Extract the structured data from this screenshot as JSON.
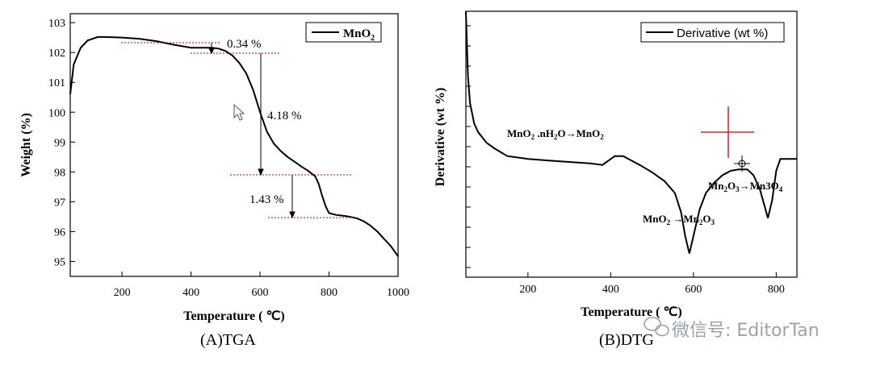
{
  "chart_data": [
    {
      "type": "line",
      "panel": "(A)TGA",
      "title": "",
      "xlabel": "Temperature ( ℃)",
      "ylabel": "Weight (%)",
      "xlim": [
        50,
        1000
      ],
      "ylim": [
        94.5,
        103.3
      ],
      "xticks": [
        200,
        400,
        600,
        800,
        1000
      ],
      "yticks": [
        95,
        96,
        97,
        98,
        99,
        100,
        101,
        102,
        103
      ],
      "legend": {
        "label": "MnO",
        "sub": "2",
        "position": "top-right"
      },
      "series": [
        {
          "name": "MnO2",
          "x": [
            50,
            60,
            80,
            100,
            130,
            150,
            200,
            250,
            300,
            350,
            400,
            430,
            460,
            480,
            500,
            520,
            540,
            560,
            580,
            600,
            620,
            640,
            660,
            680,
            700,
            720,
            740,
            760,
            770,
            780,
            790,
            800,
            820,
            850,
            880,
            900,
            920,
            940,
            960,
            980,
            1000
          ],
          "y": [
            100.6,
            101.6,
            102.15,
            102.4,
            102.52,
            102.52,
            102.5,
            102.46,
            102.38,
            102.26,
            102.16,
            102.16,
            102.16,
            102.13,
            102.05,
            101.9,
            101.65,
            101.3,
            100.75,
            100.0,
            99.35,
            98.95,
            98.7,
            98.5,
            98.34,
            98.18,
            98.03,
            97.85,
            97.6,
            97.2,
            96.85,
            96.62,
            96.56,
            96.52,
            96.45,
            96.35,
            96.2,
            96.0,
            95.75,
            95.5,
            95.17
          ]
        }
      ],
      "annotations": [
        "0.34 %",
        "4.18 %",
        "1.43 %"
      ]
    },
    {
      "type": "line",
      "panel": "(B)DTG",
      "title": "",
      "xlabel": "Temperature ( ℃)",
      "ylabel": "Derivative (wt %)",
      "xlim": [
        50,
        850
      ],
      "xticks": [
        200,
        400,
        600,
        800
      ],
      "legend": {
        "label": "Derivative (wt %)",
        "position": "top-right"
      },
      "series": [
        {
          "name": "Derivative (wt %)",
          "x": [
            50,
            55,
            60,
            70,
            80,
            100,
            120,
            150,
            200,
            250,
            300,
            350,
            380,
            395,
            410,
            430,
            450,
            470,
            500,
            530,
            555,
            570,
            580,
            590,
            600,
            615,
            630,
            650,
            670,
            690,
            710,
            730,
            745,
            760,
            770,
            780,
            790,
            800,
            810,
            820,
            830,
            850
          ],
          "y": [
            5.0,
            2.8,
            1.9,
            1.2,
            0.9,
            0.55,
            0.35,
            0.1,
            0.0,
            -0.05,
            -0.1,
            -0.15,
            -0.2,
            -0.05,
            0.1,
            0.1,
            -0.05,
            -0.2,
            -0.45,
            -0.75,
            -1.15,
            -1.8,
            -2.6,
            -3.2,
            -2.6,
            -1.7,
            -1.15,
            -0.8,
            -0.55,
            -0.4,
            -0.35,
            -0.35,
            -0.55,
            -1.0,
            -1.5,
            -2.0,
            -1.4,
            -0.4,
            0.0,
            0.0,
            0.0,
            0.0
          ]
        }
      ],
      "annotations": [
        "MnO2 .nH2O→MnO2",
        "MnO2 →Mn2O3",
        "Mn2O3→Mn3O4"
      ]
    }
  ],
  "captions": {
    "a": "(A)TGA",
    "b": "(B)DTG"
  },
  "watermark": "微信号: EditorTan",
  "colors": {
    "line": "#000000",
    "guide": "#cc0000",
    "axis": "#000000"
  }
}
